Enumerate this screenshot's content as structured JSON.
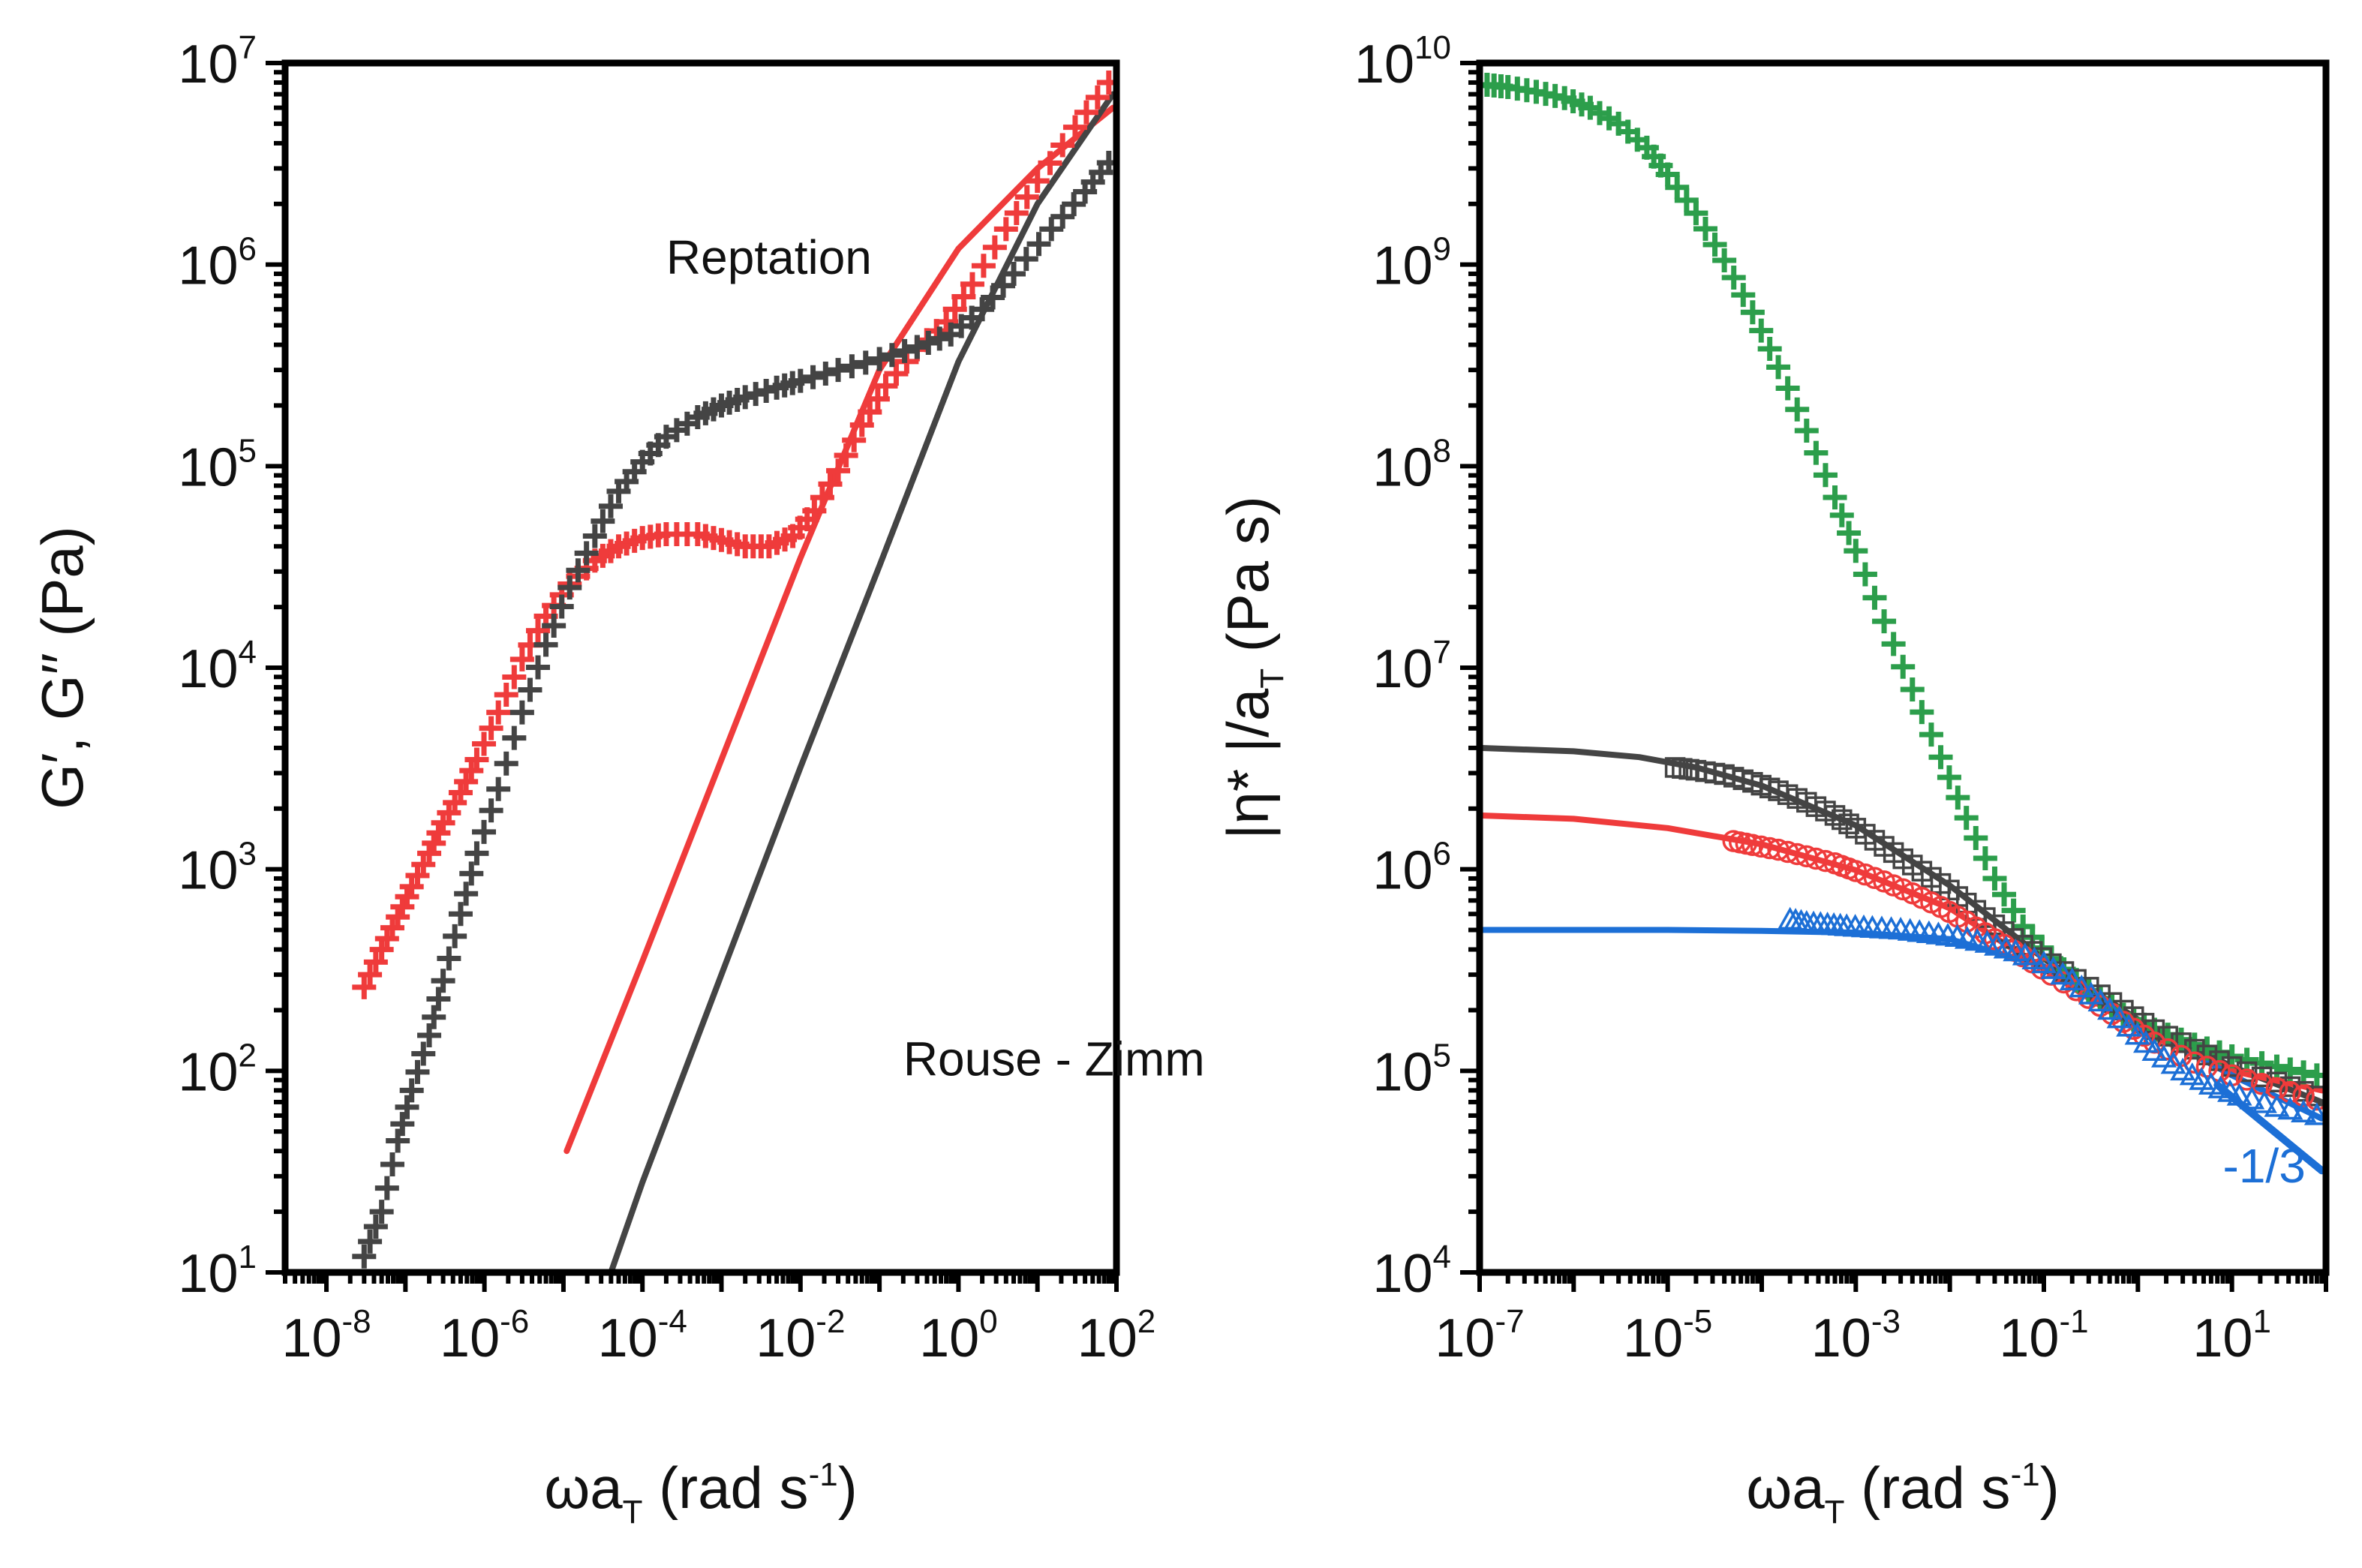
{
  "chart_data": [
    {
      "type": "scatter",
      "xscale": "log",
      "yscale": "log",
      "xlim": [
        3e-09,
        100
      ],
      "ylim": [
        10,
        10000000
      ],
      "xticks": [
        {
          "base": "10",
          "exp": "-8",
          "value": 1e-08
        },
        {
          "base": "10",
          "exp": "-6",
          "value": 1e-06
        },
        {
          "base": "10",
          "exp": "-4",
          "value": 0.0001
        },
        {
          "base": "10",
          "exp": "-2",
          "value": 0.01
        },
        {
          "base": "10",
          "exp": "0",
          "value": 1
        },
        {
          "base": "10",
          "exp": "2",
          "value": 100
        }
      ],
      "yticks": [
        {
          "base": "10",
          "exp": "1",
          "value": 10
        },
        {
          "base": "10",
          "exp": "2",
          "value": 100
        },
        {
          "base": "10",
          "exp": "3",
          "value": 1000
        },
        {
          "base": "10",
          "exp": "4",
          "value": 10000
        },
        {
          "base": "10",
          "exp": "5",
          "value": 100000
        },
        {
          "base": "10",
          "exp": "6",
          "value": 1000000
        },
        {
          "base": "10",
          "exp": "7",
          "value": 10000000
        }
      ],
      "xlabel": {
        "main": "ωa",
        "sub": "T",
        "rest": " (rad s",
        "sup": "-1",
        "end": ")"
      },
      "ylabel": "G′, G′′ (Pa)",
      "annotations": [
        {
          "text": "Reptation",
          "x": 0.0002,
          "y": 900000
        },
        {
          "text": "Rouse - Zimm",
          "x": 0.2,
          "y": 95
        }
      ],
      "series": [
        {
          "marker": "plus",
          "color": "#ef3b3b",
          "points": [
            [
              3e-08,
              260
            ],
            [
              5e-08,
              400
            ],
            [
              8e-08,
              580
            ],
            [
              1.2e-07,
              820
            ],
            [
              2e-07,
              1200
            ],
            [
              3e-07,
              1700
            ],
            [
              5e-07,
              2400
            ],
            [
              8e-07,
              3500
            ],
            [
              1.5e-06,
              6000
            ],
            [
              3e-06,
              11000
            ],
            [
              6e-06,
              18000
            ],
            [
              1.2e-05,
              26000
            ],
            [
              2.5e-05,
              34000
            ],
            [
              5e-05,
              40000
            ],
            [
              0.0001,
              44000
            ],
            [
              0.0002,
              46000
            ],
            [
              0.0005,
              46000
            ],
            [
              0.001,
              43000
            ],
            [
              0.002,
              40000
            ],
            [
              0.004,
              40000
            ],
            [
              0.008,
              45000
            ],
            [
              0.015,
              60000
            ],
            [
              0.03,
              95000
            ],
            [
              0.06,
              160000
            ],
            [
              0.12,
              250000
            ],
            [
              0.3,
              380000
            ],
            [
              0.7,
              520000
            ],
            [
              1.5,
              800000
            ],
            [
              4,
              1500000
            ],
            [
              10,
              2600000
            ],
            [
              30,
              4800000
            ],
            [
              80,
              8000000
            ]
          ]
        },
        {
          "marker": "plus",
          "color": "#444444",
          "points": [
            [
              3e-08,
              12
            ],
            [
              5e-08,
              20
            ],
            [
              8e-08,
              45
            ],
            [
              1.2e-07,
              80
            ],
            [
              2e-07,
              150
            ],
            [
              3e-07,
              280
            ],
            [
              5e-07,
              600
            ],
            [
              8e-07,
              1200
            ],
            [
              1.5e-06,
              2500
            ],
            [
              3e-06,
              6000
            ],
            [
              6e-06,
              13000
            ],
            [
              1.2e-05,
              25000
            ],
            [
              2.5e-05,
              45000
            ],
            [
              5e-05,
              75000
            ],
            [
              0.0001,
              105000
            ],
            [
              0.0002,
              140000
            ],
            [
              0.0005,
              175000
            ],
            [
              0.001,
              200000
            ],
            [
              0.002,
              220000
            ],
            [
              0.005,
              245000
            ],
            [
              0.01,
              265000
            ],
            [
              0.03,
              300000
            ],
            [
              0.1,
              340000
            ],
            [
              0.3,
              390000
            ],
            [
              0.8,
              450000
            ],
            [
              2,
              600000
            ],
            [
              5,
              900000
            ],
            [
              15,
              1500000
            ],
            [
              40,
              2300000
            ],
            [
              80,
              3200000
            ]
          ]
        }
      ],
      "lines": [
        {
          "color": "#ef3b3b",
          "points": [
            [
              1.1e-05,
              40
            ],
            [
              0.0001,
              350
            ],
            [
              0.001,
              3500
            ],
            [
              0.01,
              35000
            ],
            [
              0.1,
              300000
            ],
            [
              1,
              1200000
            ],
            [
              10,
              3000000
            ],
            [
              90,
              6000000
            ]
          ]
        },
        {
          "color": "#444444",
          "points": [
            [
              4e-05,
              10
            ],
            [
              0.0001,
              28
            ],
            [
              0.001,
              300
            ],
            [
              0.01,
              3200
            ],
            [
              0.1,
              32000
            ],
            [
              1,
              330000
            ],
            [
              10,
              2000000
            ],
            [
              90,
              7000000
            ]
          ]
        }
      ]
    },
    {
      "type": "scatter",
      "xscale": "log",
      "yscale": "log",
      "xlim": [
        1e-07,
        100
      ],
      "ylim": [
        10000,
        10000000000
      ],
      "xticks": [
        {
          "base": "10",
          "exp": "-7",
          "value": 1e-07
        },
        {
          "base": "10",
          "exp": "-5",
          "value": 1e-05
        },
        {
          "base": "10",
          "exp": "-3",
          "value": 0.001
        },
        {
          "base": "10",
          "exp": "-1",
          "value": 0.1
        },
        {
          "base": "10",
          "exp": "1",
          "value": 10
        }
      ],
      "yticks": [
        {
          "base": "10",
          "exp": "4",
          "value": 10000
        },
        {
          "base": "10",
          "exp": "5",
          "value": 100000
        },
        {
          "base": "10",
          "exp": "6",
          "value": 1000000
        },
        {
          "base": "10",
          "exp": "7",
          "value": 10000000
        },
        {
          "base": "10",
          "exp": "8",
          "value": 100000000
        },
        {
          "base": "10",
          "exp": "9",
          "value": 1000000000
        },
        {
          "base": "10",
          "exp": "10",
          "value": 10000000000
        }
      ],
      "xlabel": {
        "main": "ωa",
        "sub": "T",
        "rest": " (rad s",
        "sup": "-1",
        "end": ")"
      },
      "ylabel": {
        "main": "|η* |/a",
        "sub": "T",
        "rest": " (Pa s)"
      },
      "annotations": [
        {
          "text": "-1/3",
          "x": 8,
          "y": 28000,
          "color": "#1c6fd6"
        }
      ],
      "series": [
        {
          "marker": "plus",
          "color": "#2c9e4b",
          "points": [
            [
              1.2e-07,
              7800000000
            ],
            [
              2e-07,
              7600000000
            ],
            [
              4e-07,
              7200000000
            ],
            [
              8e-07,
              6700000000
            ],
            [
              1.5e-06,
              6000000000
            ],
            [
              3e-06,
              5000000000
            ],
            [
              6e-06,
              3800000000
            ],
            [
              1e-05,
              2800000000
            ],
            [
              2e-05,
              1800000000
            ],
            [
              4e-05,
              1050000000
            ],
            [
              8e-05,
              580000000
            ],
            [
              0.00015,
              310000000
            ],
            [
              0.0003,
              150000000
            ],
            [
              0.0006,
              70000000
            ],
            [
              0.001,
              38000000
            ],
            [
              0.002,
              17000000
            ],
            [
              0.004,
              7800000
            ],
            [
              0.008,
              3600000
            ],
            [
              0.015,
              1800000
            ],
            [
              0.03,
              900000
            ],
            [
              0.06,
              520000
            ],
            [
              0.12,
              360000
            ],
            [
              0.3,
              250000
            ],
            [
              0.7,
              190000
            ],
            [
              1.5,
              160000
            ],
            [
              4,
              135000
            ],
            [
              10,
              118000
            ],
            [
              30,
              105000
            ],
            [
              80,
              95000
            ]
          ]
        },
        {
          "marker": "square",
          "color": "#444444",
          "points": [
            [
              1.2e-05,
              3200000
            ],
            [
              2e-05,
              3100000
            ],
            [
              4e-05,
              2950000
            ],
            [
              8e-05,
              2700000
            ],
            [
              0.00015,
              2450000
            ],
            [
              0.0003,
              2150000
            ],
            [
              0.0006,
              1850000
            ],
            [
              0.001,
              1600000
            ],
            [
              0.002,
              1300000
            ],
            [
              0.004,
              1050000
            ],
            [
              0.008,
              850000
            ],
            [
              0.015,
              680000
            ],
            [
              0.03,
              530000
            ],
            [
              0.06,
              420000
            ],
            [
              0.12,
              340000
            ],
            [
              0.3,
              260000
            ],
            [
              0.7,
              200000
            ],
            [
              1.5,
              160000
            ],
            [
              4,
              128000
            ],
            [
              10,
              105000
            ],
            [
              30,
              88000
            ],
            [
              80,
              75000
            ]
          ]
        },
        {
          "marker": "circle",
          "color": "#ef3b3b",
          "points": [
            [
              5e-05,
              1380000
            ],
            [
              8e-05,
              1320000
            ],
            [
              0.00015,
              1250000
            ],
            [
              0.0003,
              1160000
            ],
            [
              0.0006,
              1070000
            ],
            [
              0.001,
              980000
            ],
            [
              0.002,
              870000
            ],
            [
              0.004,
              760000
            ],
            [
              0.008,
              650000
            ],
            [
              0.015,
              550000
            ],
            [
              0.03,
              450000
            ],
            [
              0.06,
              370000
            ],
            [
              0.12,
              300000
            ],
            [
              0.3,
              230000
            ],
            [
              0.7,
              175000
            ],
            [
              1.5,
              138000
            ],
            [
              4,
              110000
            ],
            [
              10,
              95000
            ],
            [
              30,
              82000
            ],
            [
              80,
              72000
            ]
          ]
        },
        {
          "marker": "triangle",
          "color": "#1c6fd6",
          "points": [
            [
              0.0002,
              560000
            ],
            [
              0.0003,
              540000
            ],
            [
              0.0005,
              530000
            ],
            [
              0.0008,
              520000
            ],
            [
              0.0015,
              510000
            ],
            [
              0.003,
              500000
            ],
            [
              0.006,
              480000
            ],
            [
              0.012,
              460000
            ],
            [
              0.025,
              430000
            ],
            [
              0.05,
              390000
            ],
            [
              0.1,
              340000
            ],
            [
              0.2,
              280000
            ],
            [
              0.4,
              220000
            ],
            [
              0.8,
              165000
            ],
            [
              1.5,
              125000
            ],
            [
              3,
              100000
            ],
            [
              6,
              85000
            ],
            [
              12,
              75000
            ],
            [
              30,
              66000
            ],
            [
              80,
              60000
            ]
          ]
        }
      ],
      "lines": [
        {
          "color": "#444444",
          "points": [
            [
              1e-07,
              4000000
            ],
            [
              1e-06,
              3850000
            ],
            [
              5e-06,
              3600000
            ],
            [
              2e-05,
              3200000
            ],
            [
              0.0001,
              2600000
            ],
            [
              0.001,
              1650000
            ],
            [
              0.01,
              830000
            ],
            [
              0.1,
              360000
            ],
            [
              1,
              180000
            ],
            [
              10,
              105000
            ],
            [
              90,
              70000
            ]
          ]
        },
        {
          "color": "#ef3b3b",
          "points": [
            [
              1e-07,
              1850000
            ],
            [
              1e-06,
              1780000
            ],
            [
              1e-05,
              1600000
            ],
            [
              0.0001,
              1330000
            ],
            [
              0.001,
              990000
            ],
            [
              0.01,
              640000
            ],
            [
              0.1,
              320000
            ],
            [
              1,
              160000
            ],
            [
              10,
              100000
            ],
            [
              90,
              80000
            ]
          ]
        },
        {
          "color": "#1c6fd6",
          "points": [
            [
              1e-07,
              500000
            ],
            [
              1e-05,
              500000
            ],
            [
              0.0001,
              495000
            ],
            [
              0.001,
              485000
            ],
            [
              0.01,
              450000
            ],
            [
              0.1,
              330000
            ],
            [
              1,
              170000
            ],
            [
              10,
              95000
            ],
            [
              90,
              58000
            ]
          ]
        },
        {
          "color": "#1c6fd6",
          "width": 10,
          "points": [
            [
              7,
              85000
            ],
            [
              90,
              32000
            ]
          ]
        }
      ]
    }
  ]
}
